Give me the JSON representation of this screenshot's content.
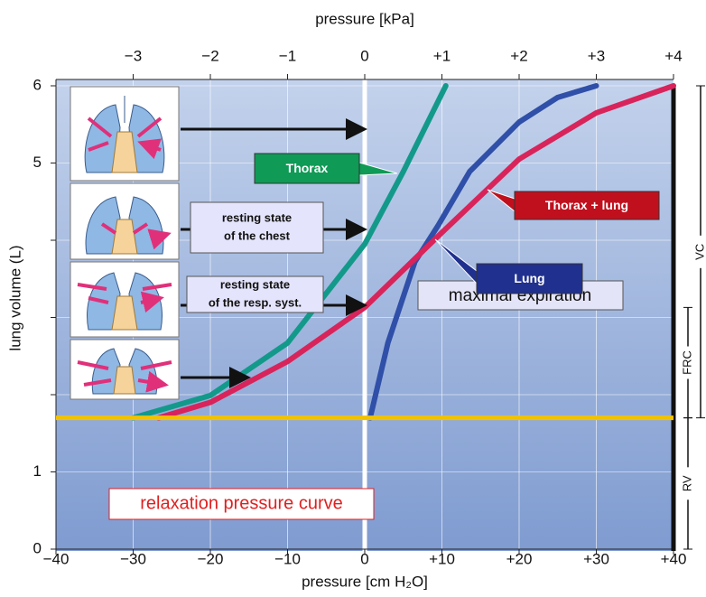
{
  "chart_data": {
    "type": "line",
    "x_title": "pressure [cm H₂O]",
    "x2_title": "pressure [kPa]",
    "y_title": "lung volume (L)",
    "xlim": [
      -40,
      40
    ],
    "xticks": [
      {
        "value": -40,
        "label": "−40"
      },
      {
        "value": -30,
        "label": "−30"
      },
      {
        "value": -20,
        "label": "−20"
      },
      {
        "value": -10,
        "label": "−10"
      },
      0,
      {
        "value": 10,
        "label": "+10"
      },
      {
        "value": 20,
        "label": "+20"
      },
      {
        "value": 30,
        "label": "+30"
      },
      {
        "value": 40,
        "label": "+40"
      }
    ],
    "x2lim": [
      -4,
      4
    ],
    "x2ticks": [
      {
        "value": -3,
        "label": "−3"
      },
      {
        "value": -2,
        "label": "−2"
      },
      {
        "value": -1,
        "label": "−1"
      },
      0,
      {
        "value": 1,
        "label": "+1"
      },
      {
        "value": 2,
        "label": "+2"
      },
      {
        "value": 3,
        "label": "+3"
      },
      {
        "value": 4,
        "label": "+4"
      }
    ],
    "ylim": [
      0,
      6
    ],
    "yticks": [
      0,
      1,
      5,
      6
    ],
    "yminorticks": [
      2,
      3,
      4
    ],
    "grid": true,
    "series": [
      {
        "name": "Thorax",
        "color": "#13998a",
        "x": [
          -30,
          -20,
          -10,
          0,
          5,
          10.5
        ],
        "values": [
          1.7,
          1.99,
          2.67,
          3.95,
          4.89,
          6
        ]
      },
      {
        "name": "Lung",
        "color": "#2f4fa8",
        "x": [
          0.7,
          3,
          6.5,
          9.5,
          13.6,
          20,
          25,
          30
        ],
        "values": [
          1.7,
          2.67,
          3.72,
          4.19,
          4.89,
          5.53,
          5.85,
          6
        ]
      },
      {
        "name": "Thorax + lung",
        "color": "#d8245a",
        "x": [
          -26.7,
          -20,
          -10,
          0,
          10,
          20,
          30,
          40
        ],
        "values": [
          1.7,
          1.9,
          2.43,
          3.13,
          4.1,
          5.05,
          5.65,
          6
        ]
      }
    ],
    "reference_line": {
      "value": 1.7,
      "color": "#f2c200",
      "label": "maximal expiration"
    },
    "annotations": [
      {
        "lines": [
          "resting state",
          "of the chest"
        ]
      },
      {
        "lines": [
          "resting state",
          "of the resp. syst."
        ]
      },
      {
        "lines": [
          "relaxation pressure curve"
        ]
      }
    ],
    "brackets": [
      {
        "label": "VC",
        "range": [
          1.7,
          6
        ]
      },
      {
        "label": "FRC",
        "range": [
          1.7,
          3.13
        ]
      },
      {
        "label": "RV",
        "range": [
          0,
          1.7
        ]
      }
    ]
  }
}
